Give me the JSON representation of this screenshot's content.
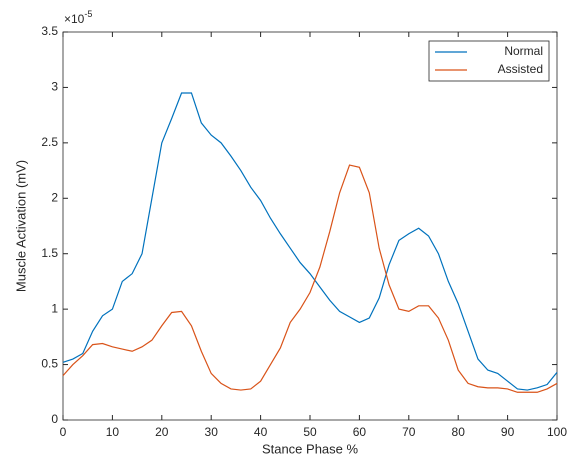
{
  "chart_data": {
    "type": "line",
    "xlabel": "Stance Phase %",
    "ylabel": "Muscle Activation (mV)",
    "y_multiplier": {
      "base": "×10",
      "exponent": "-5"
    },
    "x": [
      0,
      2,
      4,
      6,
      8,
      10,
      12,
      14,
      16,
      18,
      20,
      22,
      24,
      26,
      28,
      30,
      32,
      34,
      36,
      38,
      40,
      42,
      44,
      46,
      48,
      50,
      52,
      54,
      56,
      58,
      60,
      62,
      64,
      66,
      68,
      70,
      72,
      74,
      76,
      78,
      80,
      82,
      84,
      86,
      88,
      90,
      92,
      94,
      96,
      98,
      100
    ],
    "series": [
      {
        "name": "Normal",
        "color": "#0072bd",
        "values": [
          0.52,
          0.55,
          0.6,
          0.8,
          0.94,
          1.0,
          1.25,
          1.32,
          1.5,
          2.0,
          2.5,
          2.72,
          2.95,
          2.95,
          2.68,
          2.57,
          2.5,
          2.38,
          2.25,
          2.1,
          1.98,
          1.82,
          1.68,
          1.55,
          1.42,
          1.32,
          1.2,
          1.08,
          0.98,
          0.93,
          0.88,
          0.92,
          1.1,
          1.4,
          1.62,
          1.68,
          1.73,
          1.66,
          1.5,
          1.25,
          1.05,
          0.8,
          0.55,
          0.45,
          0.42,
          0.35,
          0.28,
          0.27,
          0.29,
          0.32,
          0.43
        ]
      },
      {
        "name": "Assisted",
        "color": "#d95319",
        "values": [
          0.4,
          0.5,
          0.58,
          0.68,
          0.69,
          0.66,
          0.64,
          0.62,
          0.66,
          0.72,
          0.85,
          0.97,
          0.98,
          0.85,
          0.62,
          0.42,
          0.33,
          0.28,
          0.27,
          0.28,
          0.35,
          0.5,
          0.65,
          0.88,
          1.0,
          1.15,
          1.38,
          1.7,
          2.05,
          2.3,
          2.28,
          2.05,
          1.55,
          1.22,
          1.0,
          0.98,
          1.03,
          1.03,
          0.92,
          0.72,
          0.45,
          0.33,
          0.3,
          0.29,
          0.29,
          0.28,
          0.25,
          0.25,
          0.25,
          0.28,
          0.33
        ]
      }
    ],
    "xlim": [
      0,
      100
    ],
    "xticks": [
      0,
      10,
      20,
      30,
      40,
      50,
      60,
      70,
      80,
      90,
      100
    ],
    "ylim": [
      0,
      3.5
    ],
    "yticks": [
      0,
      0.5,
      1,
      1.5,
      2,
      2.5,
      3,
      3.5
    ],
    "grid": false,
    "legend": "top-right"
  }
}
